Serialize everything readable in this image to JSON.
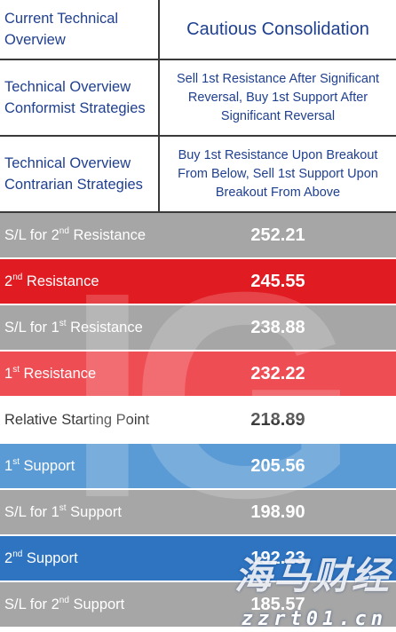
{
  "header": {
    "overview_label": "Current Technical Overview",
    "overview_value": "Cautious Consolidation",
    "conformist_label": "Technical Overview Conformist Strategies",
    "conformist_value": "Sell 1st Resistance After Significant Reversal, Buy 1st Support After Significant Reversal",
    "contrarian_label": "Technical Overview Contrarian Strategies",
    "contrarian_value": "Buy 1st Resistance Upon Breakout From Below, Sell 1st Support Upon Breakout From Above"
  },
  "levels": {
    "sl_r2": {
      "pre": "S/L for 2",
      "sup": "nd",
      "post": " Resistance",
      "value": "252.21"
    },
    "r2": {
      "pre": "2",
      "sup": "nd",
      "post": " Resistance",
      "value": "245.55"
    },
    "sl_r1": {
      "pre": "S/L for 1",
      "sup": "st",
      "post": " Resistance",
      "value": "238.88"
    },
    "r1": {
      "pre": "1",
      "sup": "st",
      "post": " Resistance",
      "value": "232.22"
    },
    "start": {
      "label": "Relative Starting Point",
      "value": "218.89"
    },
    "s1": {
      "pre": "1",
      "sup": "st",
      "post": " Support",
      "value": "205.56"
    },
    "sl_s1": {
      "pre": "S/L for 1",
      "sup": "st",
      "post": " Support",
      "value": "198.90"
    },
    "s2": {
      "pre": "2",
      "sup": "nd",
      "post": " Support",
      "value": "192.23"
    },
    "sl_s2": {
      "pre": "S/L for 2",
      "sup": "nd",
      "post": " Support",
      "value": "185.57"
    }
  },
  "watermark": {
    "brand": "IG",
    "logo_text": "海马财经",
    "url": "zzrt01.cn"
  },
  "colors": {
    "header_text": "#1f3f8f",
    "gray": "#a6a6a6",
    "red": "#e11b22",
    "red_light": "#ef4d54",
    "blue_light": "#5b9bd5",
    "blue_dark": "#2e74c0"
  }
}
